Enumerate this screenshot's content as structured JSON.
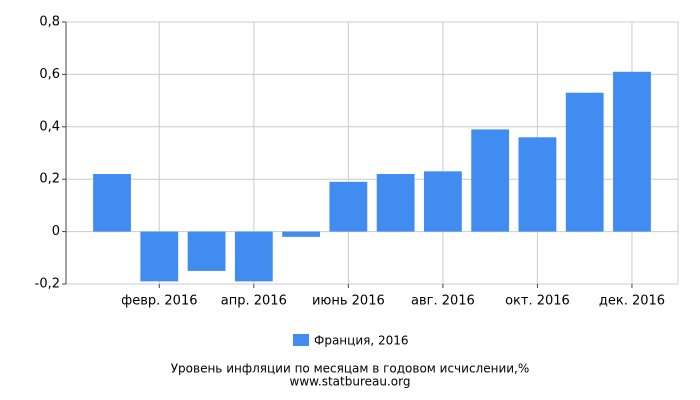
{
  "chart_data": {
    "type": "bar",
    "title": "Уровень инфляции по месяцам в годовом исчислении,%",
    "source": "www.statbureau.org",
    "categories": [
      null,
      "февр. 2016",
      null,
      "апр. 2016",
      null,
      "июнь 2016",
      null,
      "авг. 2016",
      null,
      "окт. 2016",
      null,
      "дек. 2016"
    ],
    "series": [
      {
        "name": "Франция, 2016",
        "color": "#418cf0",
        "values": [
          0.22,
          -0.19,
          -0.15,
          -0.19,
          -0.02,
          0.19,
          0.22,
          0.23,
          0.39,
          0.36,
          0.53,
          0.61
        ]
      }
    ],
    "ylim": [
      -0.2,
      0.8
    ],
    "yticks": [
      {
        "value": -0.2,
        "label": "-0,2"
      },
      0,
      {
        "value": 0.2,
        "label": "0,2"
      },
      {
        "value": 0.4,
        "label": "0,4"
      },
      {
        "value": 0.6,
        "label": "0,6"
      },
      {
        "value": 0.8,
        "label": "0,8"
      }
    ],
    "grid": true
  }
}
